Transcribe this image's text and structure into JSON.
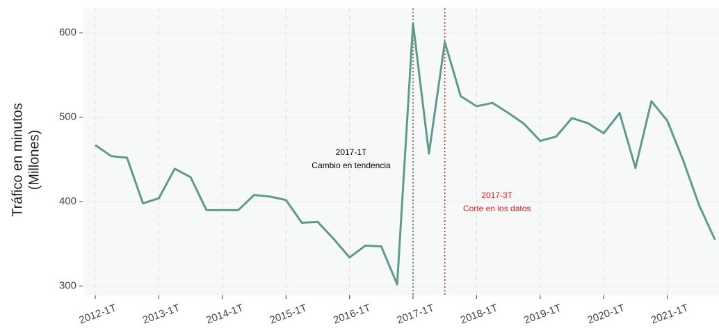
{
  "chart_data": {
    "type": "line",
    "ylabel": [
      "Tráfico en minutos",
      "(Millones)"
    ],
    "categories": [
      "2012-1T",
      null,
      null,
      null,
      "2013-1T",
      null,
      null,
      null,
      "2014-1T",
      null,
      null,
      null,
      "2015-1T",
      null,
      null,
      null,
      "2016-1T",
      null,
      null,
      null,
      "2017-1T",
      null,
      null,
      null,
      "2018-1T",
      null,
      null,
      null,
      "2019-1T",
      null,
      null,
      null,
      "2020-1T",
      null,
      null,
      null,
      "2021-1T",
      null,
      null,
      null
    ],
    "series": [
      {
        "name": "Tráfico",
        "color": "#5e9a8e",
        "values": [
          467,
          454,
          452,
          398,
          404,
          439,
          429,
          390,
          390,
          390,
          408,
          406,
          402,
          375,
          376,
          356,
          334,
          348,
          347,
          302,
          611,
          457,
          589,
          525,
          513,
          517,
          505,
          492,
          472,
          477,
          499,
          493,
          481,
          505,
          440,
          519,
          496,
          449,
          396,
          355
        ]
      }
    ],
    "ylim": [
      289,
      629
    ],
    "yticks": [
      300,
      400,
      500,
      600
    ],
    "grid": true,
    "annotations": [
      {
        "lines": [
          "2017-1T",
          "Cambio en tendencia"
        ],
        "color": "#000000",
        "line_color": "#555555"
      },
      {
        "lines": [
          "2017-3T",
          "Corte en los datos"
        ],
        "color": "#e41a1c",
        "line_color": "#e41a1c"
      }
    ]
  }
}
